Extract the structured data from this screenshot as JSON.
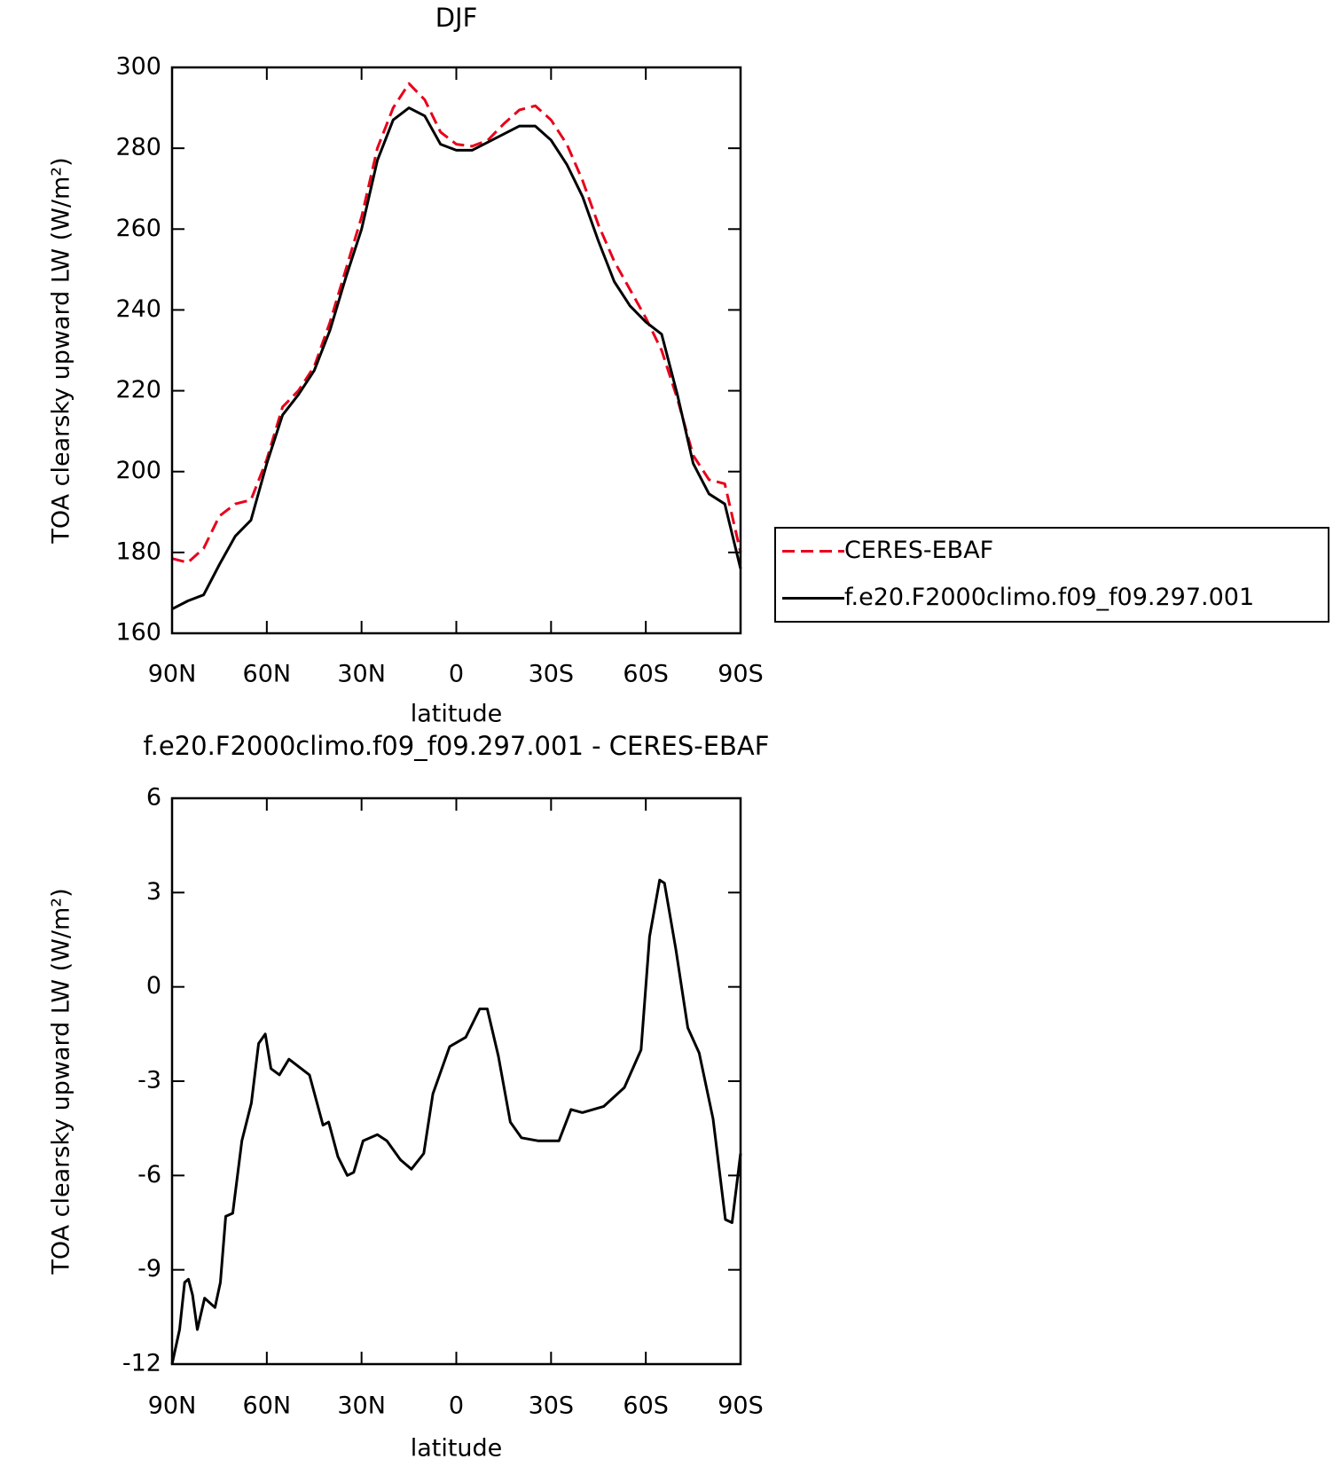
{
  "chart_data": [
    {
      "type": "line",
      "title": "DJF",
      "xlabel": "latitude",
      "ylabel": "TOA clearsky upward LW (W/m²)",
      "x": [
        90,
        85,
        80,
        75,
        70,
        65,
        60,
        55,
        50,
        45,
        40,
        35,
        30,
        25,
        20,
        15,
        10,
        5,
        0,
        -5,
        -10,
        -15,
        -20,
        -25,
        -30,
        -35,
        -40,
        -45,
        -50,
        -55,
        -60,
        -65,
        -70,
        -75,
        -80,
        -85,
        -90
      ],
      "xlim": [
        90,
        -90
      ],
      "xticks": [
        {
          "value": 90,
          "label": "90N"
        },
        {
          "value": 60,
          "label": "60N"
        },
        {
          "value": 30,
          "label": "30N"
        },
        0,
        {
          "value": -30,
          "label": "30S"
        },
        {
          "value": -60,
          "label": "60S"
        },
        {
          "value": -90,
          "label": "90S"
        }
      ],
      "ylim": [
        160,
        300
      ],
      "yticks": [
        160,
        180,
        200,
        220,
        240,
        260,
        280,
        300
      ],
      "legend": "right",
      "series": [
        {
          "name": "CERES-EBAF",
          "color": "#e8001a",
          "dash": true,
          "values": [
            178.5,
            177.5,
            181,
            189,
            192,
            193,
            203,
            216,
            220,
            226,
            237,
            250,
            263,
            280,
            290,
            296,
            292,
            284,
            281,
            280.5,
            282,
            286,
            289.5,
            290.5,
            287,
            281,
            272,
            261,
            252,
            245,
            238,
            230,
            218,
            204,
            198,
            197,
            180
          ]
        },
        {
          "name": "f.e20.F2000climo.f09_f09.297.001",
          "color": "#000000",
          "dash": false,
          "values": [
            166,
            168,
            169.5,
            177,
            184,
            188,
            202,
            214,
            219,
            225,
            235,
            248,
            260,
            277,
            287,
            290,
            288,
            281,
            279.5,
            279.5,
            281.5,
            283.5,
            285.5,
            285.5,
            282,
            276,
            268,
            257,
            247,
            241,
            237,
            234,
            219,
            202,
            194.5,
            192,
            176
          ]
        }
      ]
    },
    {
      "type": "line",
      "title": "f.e20.F2000climo.f09_f09.297.001 - CERES-EBAF",
      "xlabel": "latitude",
      "ylabel": "TOA clearsky upward LW (W/m²)",
      "x": [
        90,
        87.6,
        86,
        84.8,
        83.5,
        82,
        79.7,
        76.4,
        74.7,
        73,
        70.8,
        67.9,
        64.9,
        62.6,
        60.5,
        58.7,
        56,
        53,
        46.5,
        42.2,
        40.4,
        37.5,
        34.5,
        32.5,
        29.5,
        25,
        22,
        17.7,
        14.2,
        10.3,
        7.4,
        2.1,
        -3,
        -7.4,
        -9.8,
        -13.3,
        -17.1,
        -20.6,
        -26,
        -32.5,
        -36.3,
        -39.9,
        -46.7,
        -53.2,
        -58.5,
        -61.2,
        -64.4,
        -65.9,
        -69.5,
        -73.3,
        -76.9,
        -81.3,
        -85.2,
        -87.3,
        -90
      ],
      "xlim": [
        90,
        -90
      ],
      "xticks": [
        {
          "value": 90,
          "label": "90N"
        },
        {
          "value": 60,
          "label": "60N"
        },
        {
          "value": 30,
          "label": "30N"
        },
        0,
        {
          "value": -30,
          "label": "30S"
        },
        {
          "value": -60,
          "label": "60S"
        },
        {
          "value": -90,
          "label": "90S"
        }
      ],
      "ylim": [
        -12,
        6
      ],
      "yticks": [
        -12,
        -9,
        -6,
        -3,
        0,
        3,
        6
      ],
      "series": [
        {
          "color": "#000000",
          "dash": false,
          "values": [
            -12,
            -10.9,
            -9.4,
            -9.3,
            -9.8,
            -10.9,
            -9.9,
            -10.2,
            -9.4,
            -7.3,
            -7.2,
            -4.9,
            -3.7,
            -1.8,
            -1.5,
            -2.6,
            -2.8,
            -2.3,
            -2.8,
            -4.4,
            -4.3,
            -5.4,
            -6.0,
            -5.9,
            -4.9,
            -4.7,
            -4.9,
            -5.5,
            -5.8,
            -5.3,
            -3.4,
            -1.9,
            -1.6,
            -0.7,
            -0.7,
            -2.2,
            -4.3,
            -4.8,
            -4.9,
            -4.9,
            -3.9,
            -4.0,
            -3.8,
            -3.2,
            -2.0,
            1.6,
            3.4,
            3.3,
            1.2,
            -1.3,
            -2.1,
            -4.2,
            -7.4,
            -7.5,
            -5.3
          ]
        }
      ]
    }
  ]
}
